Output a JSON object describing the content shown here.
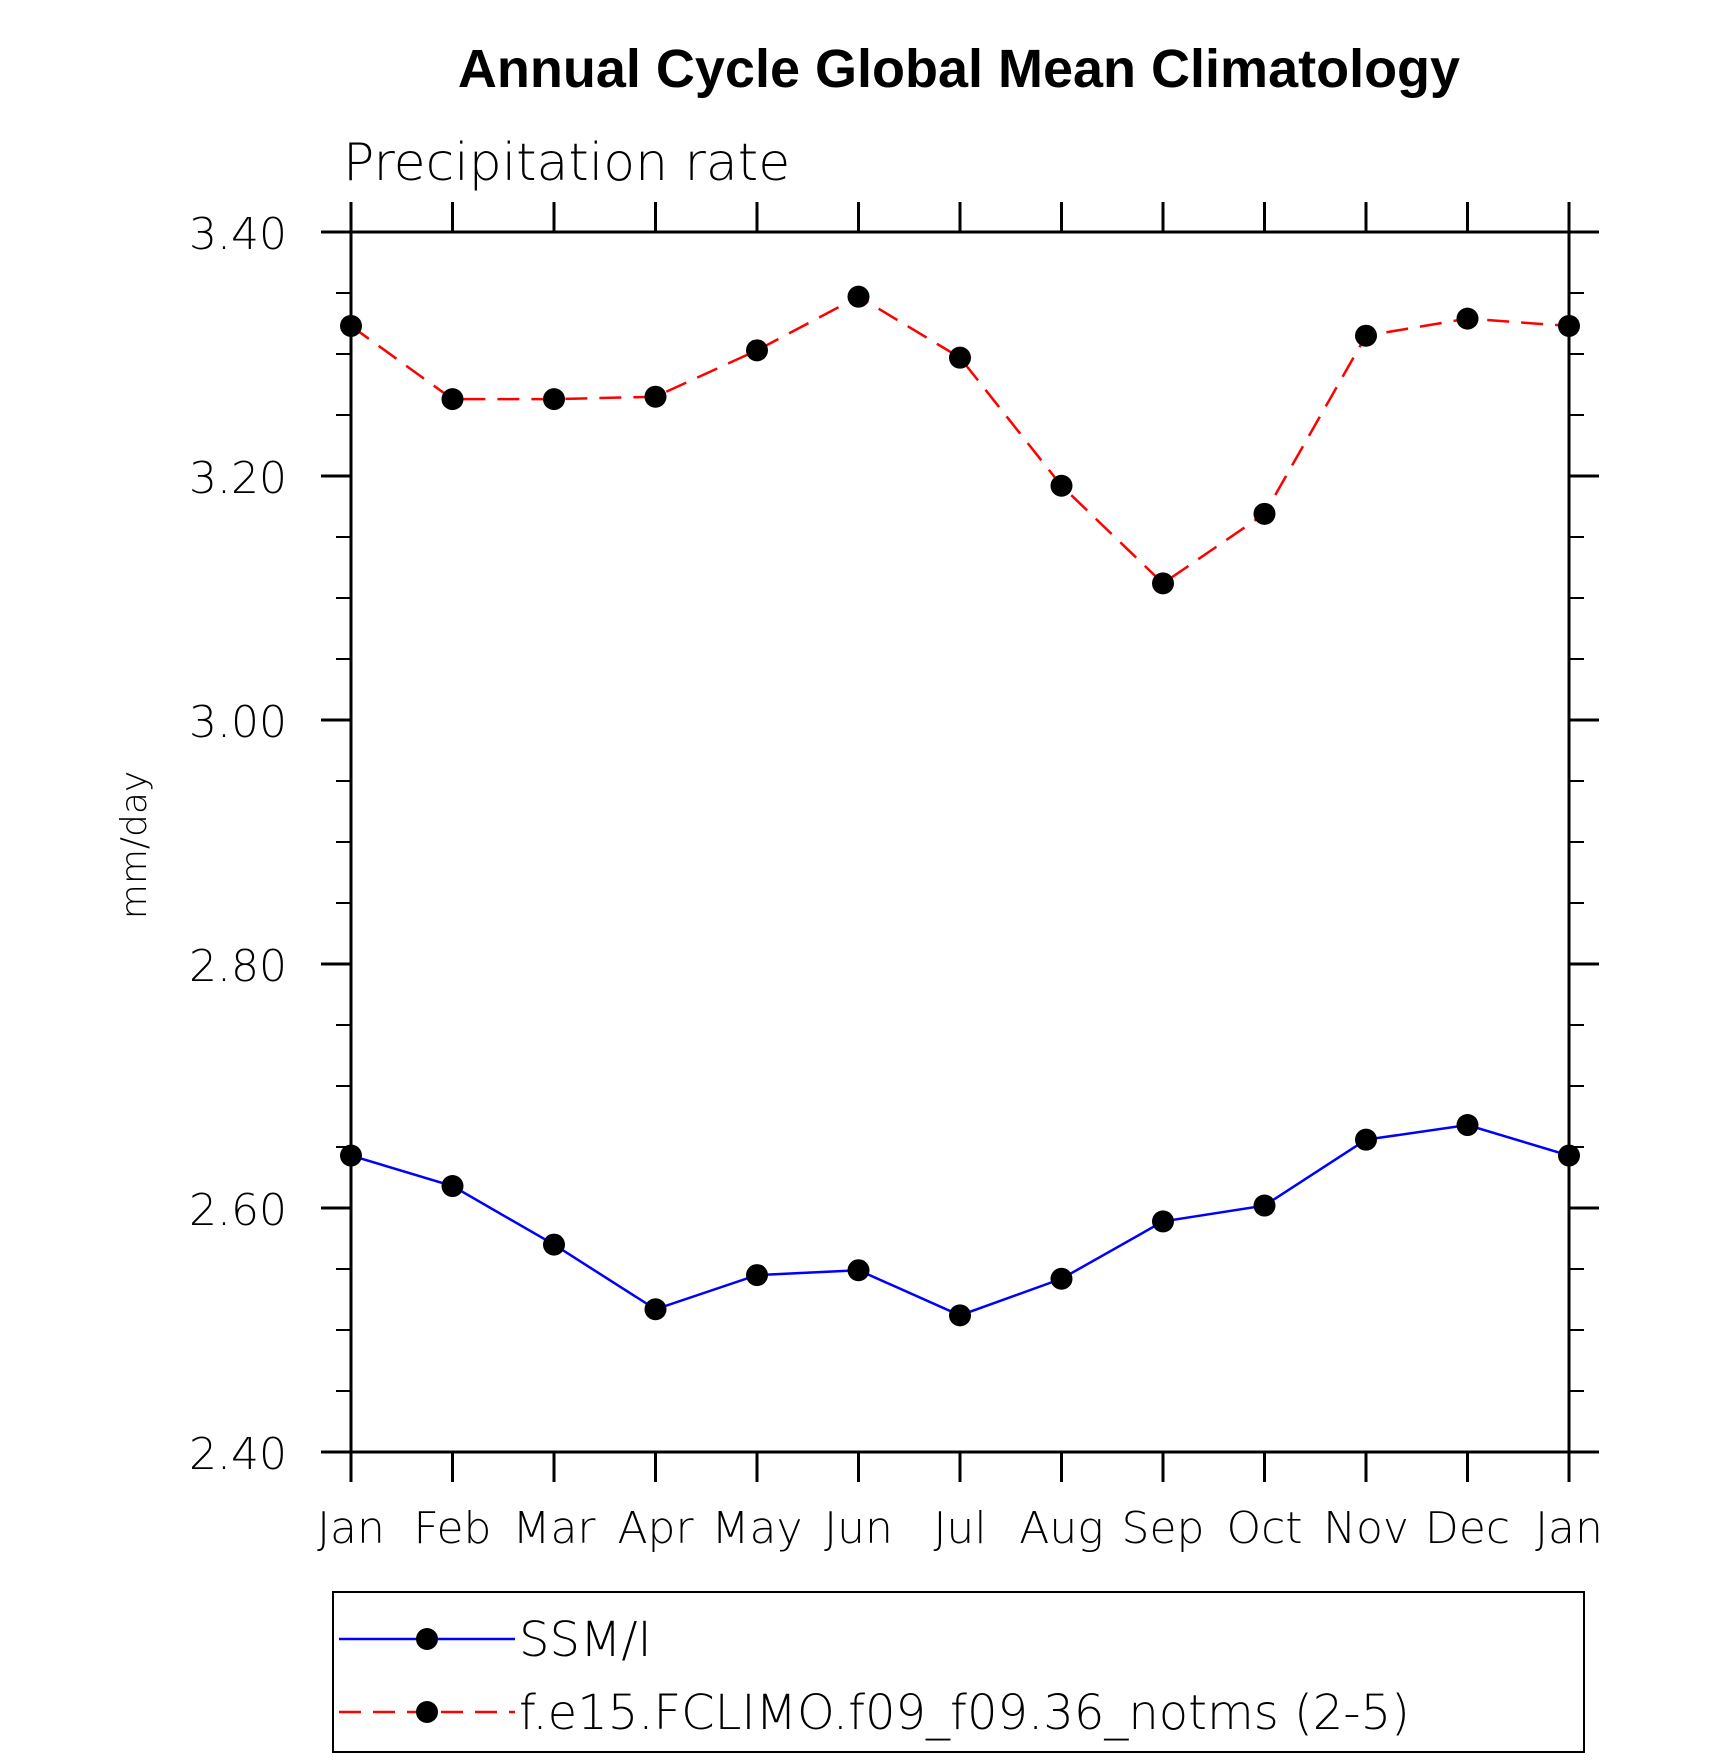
{
  "chart_data": {
    "type": "line",
    "title": "Annual Cycle Global Mean Climatology",
    "subtitle": "Precipitation rate",
    "ylabel": "mm/day",
    "xlabel": "",
    "categories": [
      "Jan",
      "Feb",
      "Mar",
      "Apr",
      "May",
      "Jun",
      "Jul",
      "Aug",
      "Sep",
      "Oct",
      "Nov",
      "Dec",
      "Jan"
    ],
    "ylim": [
      2.4,
      3.4
    ],
    "yticks": [
      "2.40",
      "2.60",
      "2.80",
      "3.00",
      "3.20",
      "3.40"
    ],
    "grid": false,
    "legend_position": "bottom",
    "series": [
      {
        "name": "SSM/I",
        "color": "#0000ff",
        "dash": "solid",
        "marker": "circle",
        "values": [
          2.643,
          2.618,
          2.57,
          2.517,
          2.545,
          2.549,
          2.512,
          2.542,
          2.589,
          2.602,
          2.656,
          2.668,
          2.643
        ]
      },
      {
        "name": "f.e15.FCLIMO.f09_f09.36_notms (2-5)",
        "color": "#ff0000",
        "dash": "dashed",
        "marker": "circle",
        "values": [
          3.323,
          3.263,
          3.263,
          3.265,
          3.303,
          3.347,
          3.297,
          3.192,
          3.112,
          3.169,
          3.315,
          3.329,
          3.323
        ]
      }
    ]
  }
}
